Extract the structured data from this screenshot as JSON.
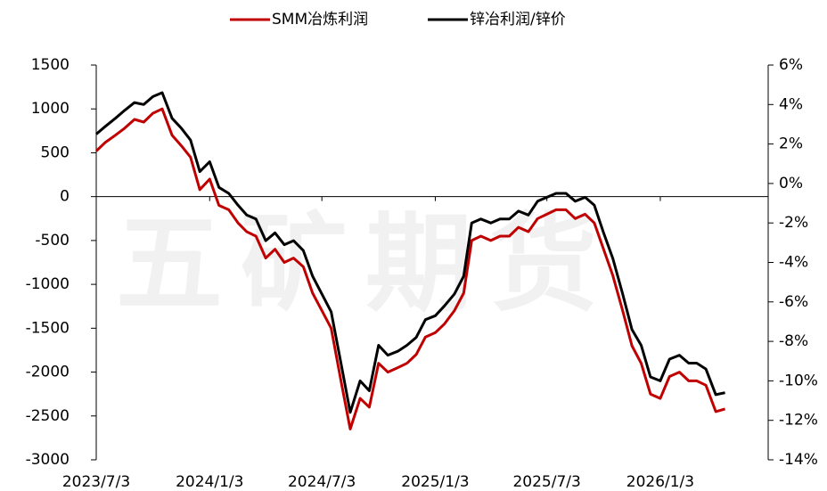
{
  "watermark": "五矿期货",
  "chart_data": {
    "type": "line",
    "x": [
      "2023/7/3",
      "2023/7/18",
      "2023/8/3",
      "2023/8/18",
      "2023/9/3",
      "2023/9/18",
      "2023/10/3",
      "2023/10/18",
      "2023/11/3",
      "2023/11/18",
      "2023/12/3",
      "2023/12/18",
      "2024/1/3",
      "2024/1/18",
      "2024/2/3",
      "2024/2/18",
      "2024/3/3",
      "2024/3/18",
      "2024/4/3",
      "2024/4/18",
      "2024/5/3",
      "2024/5/18",
      "2024/6/3",
      "2024/6/18",
      "2024/7/3",
      "2024/7/18",
      "2024/8/3",
      "2024/8/18",
      "2024/9/3",
      "2024/9/18",
      "2024/10/3",
      "2024/10/18",
      "2024/11/3",
      "2024/11/18",
      "2024/12/3",
      "2024/12/18",
      "2025/1/3",
      "2025/1/18",
      "2025/2/3",
      "2025/2/18",
      "2025/3/3",
      "2025/3/18",
      "2025/4/3",
      "2025/4/18",
      "2025/5/3",
      "2025/5/18",
      "2025/6/3",
      "2025/6/18",
      "2025/7/3",
      "2025/7/18",
      "2025/8/3",
      "2025/8/18",
      "2025/9/3",
      "2025/9/18",
      "2025/10/3",
      "2025/10/18",
      "2025/11/3",
      "2025/11/18",
      "2025/12/3",
      "2025/12/18",
      "2026/1/3",
      "2026/1/18",
      "2026/2/3",
      "2026/2/18",
      "2026/3/3",
      "2026/3/18",
      "2026/4/3",
      "2026/4/18"
    ],
    "series": [
      {
        "name": "SMM冶炼利润",
        "color": "#c00000",
        "axis": "y",
        "values": [
          520,
          620,
          700,
          780,
          880,
          850,
          950,
          1000,
          700,
          580,
          450,
          80,
          200,
          -100,
          -150,
          -300,
          -400,
          -450,
          -700,
          -600,
          -750,
          -700,
          -800,
          -1100,
          -1300,
          -1500,
          -2100,
          -2650,
          -2300,
          -2400,
          -1900,
          -2000,
          -1950,
          -1900,
          -1800,
          -1600,
          -1550,
          -1450,
          -1300,
          -1100,
          -500,
          -450,
          -500,
          -450,
          -450,
          -350,
          -400,
          -250,
          -200,
          -150,
          -150,
          -250,
          -200,
          -300,
          -600,
          -900,
          -1300,
          -1700,
          -1900,
          -2250,
          -2300,
          -2050,
          -2000,
          -2100,
          -2100,
          -2150,
          -2450,
          -2420
        ]
      },
      {
        "name": "锌冶利润/锌价",
        "color": "#000000",
        "axis": "y2",
        "values": [
          2.5,
          2.9,
          3.3,
          3.7,
          4.1,
          4.0,
          4.4,
          4.6,
          3.3,
          2.8,
          2.2,
          0.6,
          1.1,
          -0.2,
          -0.5,
          -1.1,
          -1.6,
          -1.8,
          -2.9,
          -2.5,
          -3.1,
          -2.9,
          -3.4,
          -4.7,
          -5.6,
          -6.5,
          -9.1,
          -11.6,
          -10.0,
          -10.5,
          -8.2,
          -8.7,
          -8.5,
          -8.2,
          -7.8,
          -6.9,
          -6.7,
          -6.2,
          -5.6,
          -4.7,
          -2.0,
          -1.8,
          -2.0,
          -1.8,
          -1.8,
          -1.4,
          -1.6,
          -0.9,
          -0.7,
          -0.5,
          -0.5,
          -0.9,
          -0.7,
          -1.1,
          -2.5,
          -3.8,
          -5.6,
          -7.4,
          -8.2,
          -9.8,
          -10.0,
          -8.9,
          -8.7,
          -9.1,
          -9.1,
          -9.4,
          -10.7,
          -10.6
        ]
      }
    ],
    "xlim": [
      "2023/7/3",
      "2026/6/27"
    ],
    "xticks": [
      "2023/7/3",
      "2024/1/3",
      "2024/7/3",
      "2025/1/3",
      "2025/7/3",
      "2026/1/3"
    ],
    "ylim": [
      -3000,
      1500
    ],
    "yticks": [
      1500,
      1000,
      500,
      0,
      -500,
      -1000,
      -1500,
      -2000,
      -2500,
      -3000
    ],
    "y2lim": [
      -14,
      6
    ],
    "y2ticks": [
      {
        "value": 6,
        "label": "6%"
      },
      {
        "value": 4,
        "label": "4%"
      },
      {
        "value": 2,
        "label": "2%"
      },
      {
        "value": 0,
        "label": "0%"
      },
      {
        "value": -2,
        "label": "-2%"
      },
      {
        "value": -4,
        "label": "-4%"
      },
      {
        "value": -6,
        "label": "-6%"
      },
      {
        "value": -8,
        "label": "-8%"
      },
      {
        "value": -10,
        "label": "-10%"
      },
      {
        "value": -12,
        "label": "-12%"
      },
      {
        "value": -14,
        "label": "-14%"
      }
    ],
    "negative_tick_color": "#c00000",
    "legend": "top"
  }
}
